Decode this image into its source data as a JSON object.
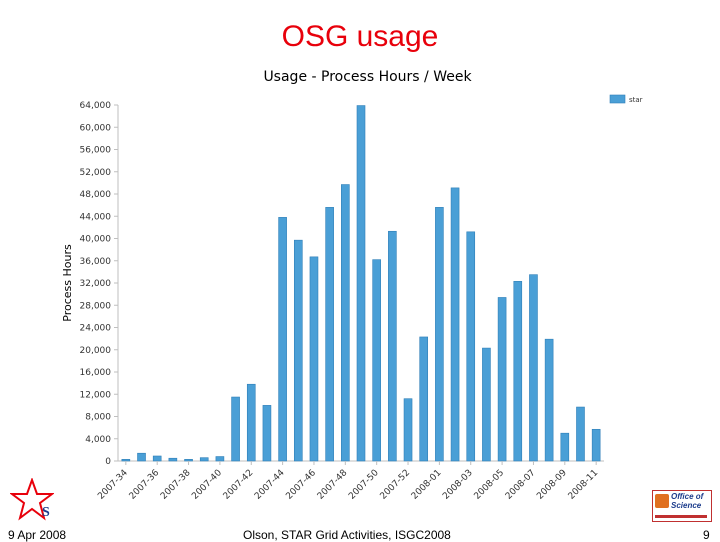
{
  "slide": {
    "title": "OSG usage",
    "footer_date": "9 Apr 2008",
    "footer_center": "Olson, STAR Grid Activities, ISGC2008",
    "page_number": "9",
    "office_logo_text": [
      "Office of",
      "Science"
    ]
  },
  "colors": {
    "title": "#e8000b",
    "bar": "#4a9fd6",
    "bar_edge": "#2f7fb8"
  },
  "chart_data": {
    "type": "bar",
    "title": "Usage - Process Hours / Week",
    "ylabel": "Process Hours",
    "xlabel": "",
    "ylim": [
      0,
      64000
    ],
    "yticks": [
      0,
      4000,
      8000,
      12000,
      16000,
      20000,
      24000,
      28000,
      32000,
      36000,
      40000,
      44000,
      48000,
      52000,
      56000,
      60000,
      64000
    ],
    "ytick_labels": [
      "0",
      "4,000",
      "8,000",
      "12,000",
      "16,000",
      "20,000",
      "24,000",
      "28,000",
      "32,000",
      "36,000",
      "40,000",
      "44,000",
      "48,000",
      "52,000",
      "56,000",
      "60,000",
      "64,000"
    ],
    "categories": [
      "2007-34",
      "2007-35",
      "2007-36",
      "2007-37",
      "2007-38",
      "2007-39",
      "2007-40",
      "2007-41",
      "2007-42",
      "2007-43",
      "2007-44",
      "2007-45",
      "2007-46",
      "2007-47",
      "2007-48",
      "2007-49",
      "2007-50",
      "2007-51",
      "2007-52",
      "2008-00",
      "2008-01",
      "2008-02",
      "2008-03",
      "2008-04",
      "2008-05",
      "2008-06",
      "2008-07",
      "2008-08",
      "2008-09",
      "2008-10",
      "2008-11"
    ],
    "xtick_labels": [
      "2007-34",
      "2007-36",
      "2007-38",
      "2007-40",
      "2007-42",
      "2007-44",
      "2007-46",
      "2007-48",
      "2007-50",
      "2007-52",
      "2008-01",
      "2008-03",
      "2008-05",
      "2008-07",
      "2008-09",
      "2008-11"
    ],
    "series": [
      {
        "name": "star",
        "values": [
          300,
          1400,
          900,
          500,
          300,
          600,
          800,
          11500,
          13800,
          10000,
          43800,
          39700,
          36700,
          45600,
          49700,
          63900,
          36200,
          41300,
          11200,
          22300,
          45600,
          49100,
          41200,
          20300,
          29400,
          32300,
          33500,
          21900,
          5000,
          9700,
          5700
        ]
      }
    ],
    "grid": false,
    "legend_position": "top-right"
  }
}
